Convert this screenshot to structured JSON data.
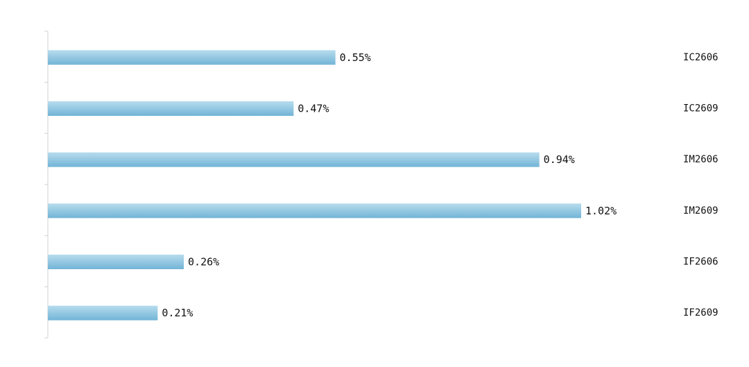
{
  "chart_data": {
    "type": "bar",
    "orientation": "horizontal",
    "title": "",
    "xlabel": "",
    "ylabel": "",
    "categories": [
      "IC2606",
      "IC2609",
      "IM2606",
      "IM2609",
      "IF2606",
      "IF2609"
    ],
    "values": [
      0.55,
      0.47,
      0.94,
      1.02,
      0.26,
      0.21
    ],
    "data_labels": [
      "0.55%",
      "0.47%",
      "0.94%",
      "1.02%",
      "0.26%",
      "0.21%"
    ],
    "xlim": [
      0,
      1.02
    ],
    "grid": false,
    "legend": "none",
    "bar_color": "#8ec6e2",
    "category_labels_position": "right"
  }
}
